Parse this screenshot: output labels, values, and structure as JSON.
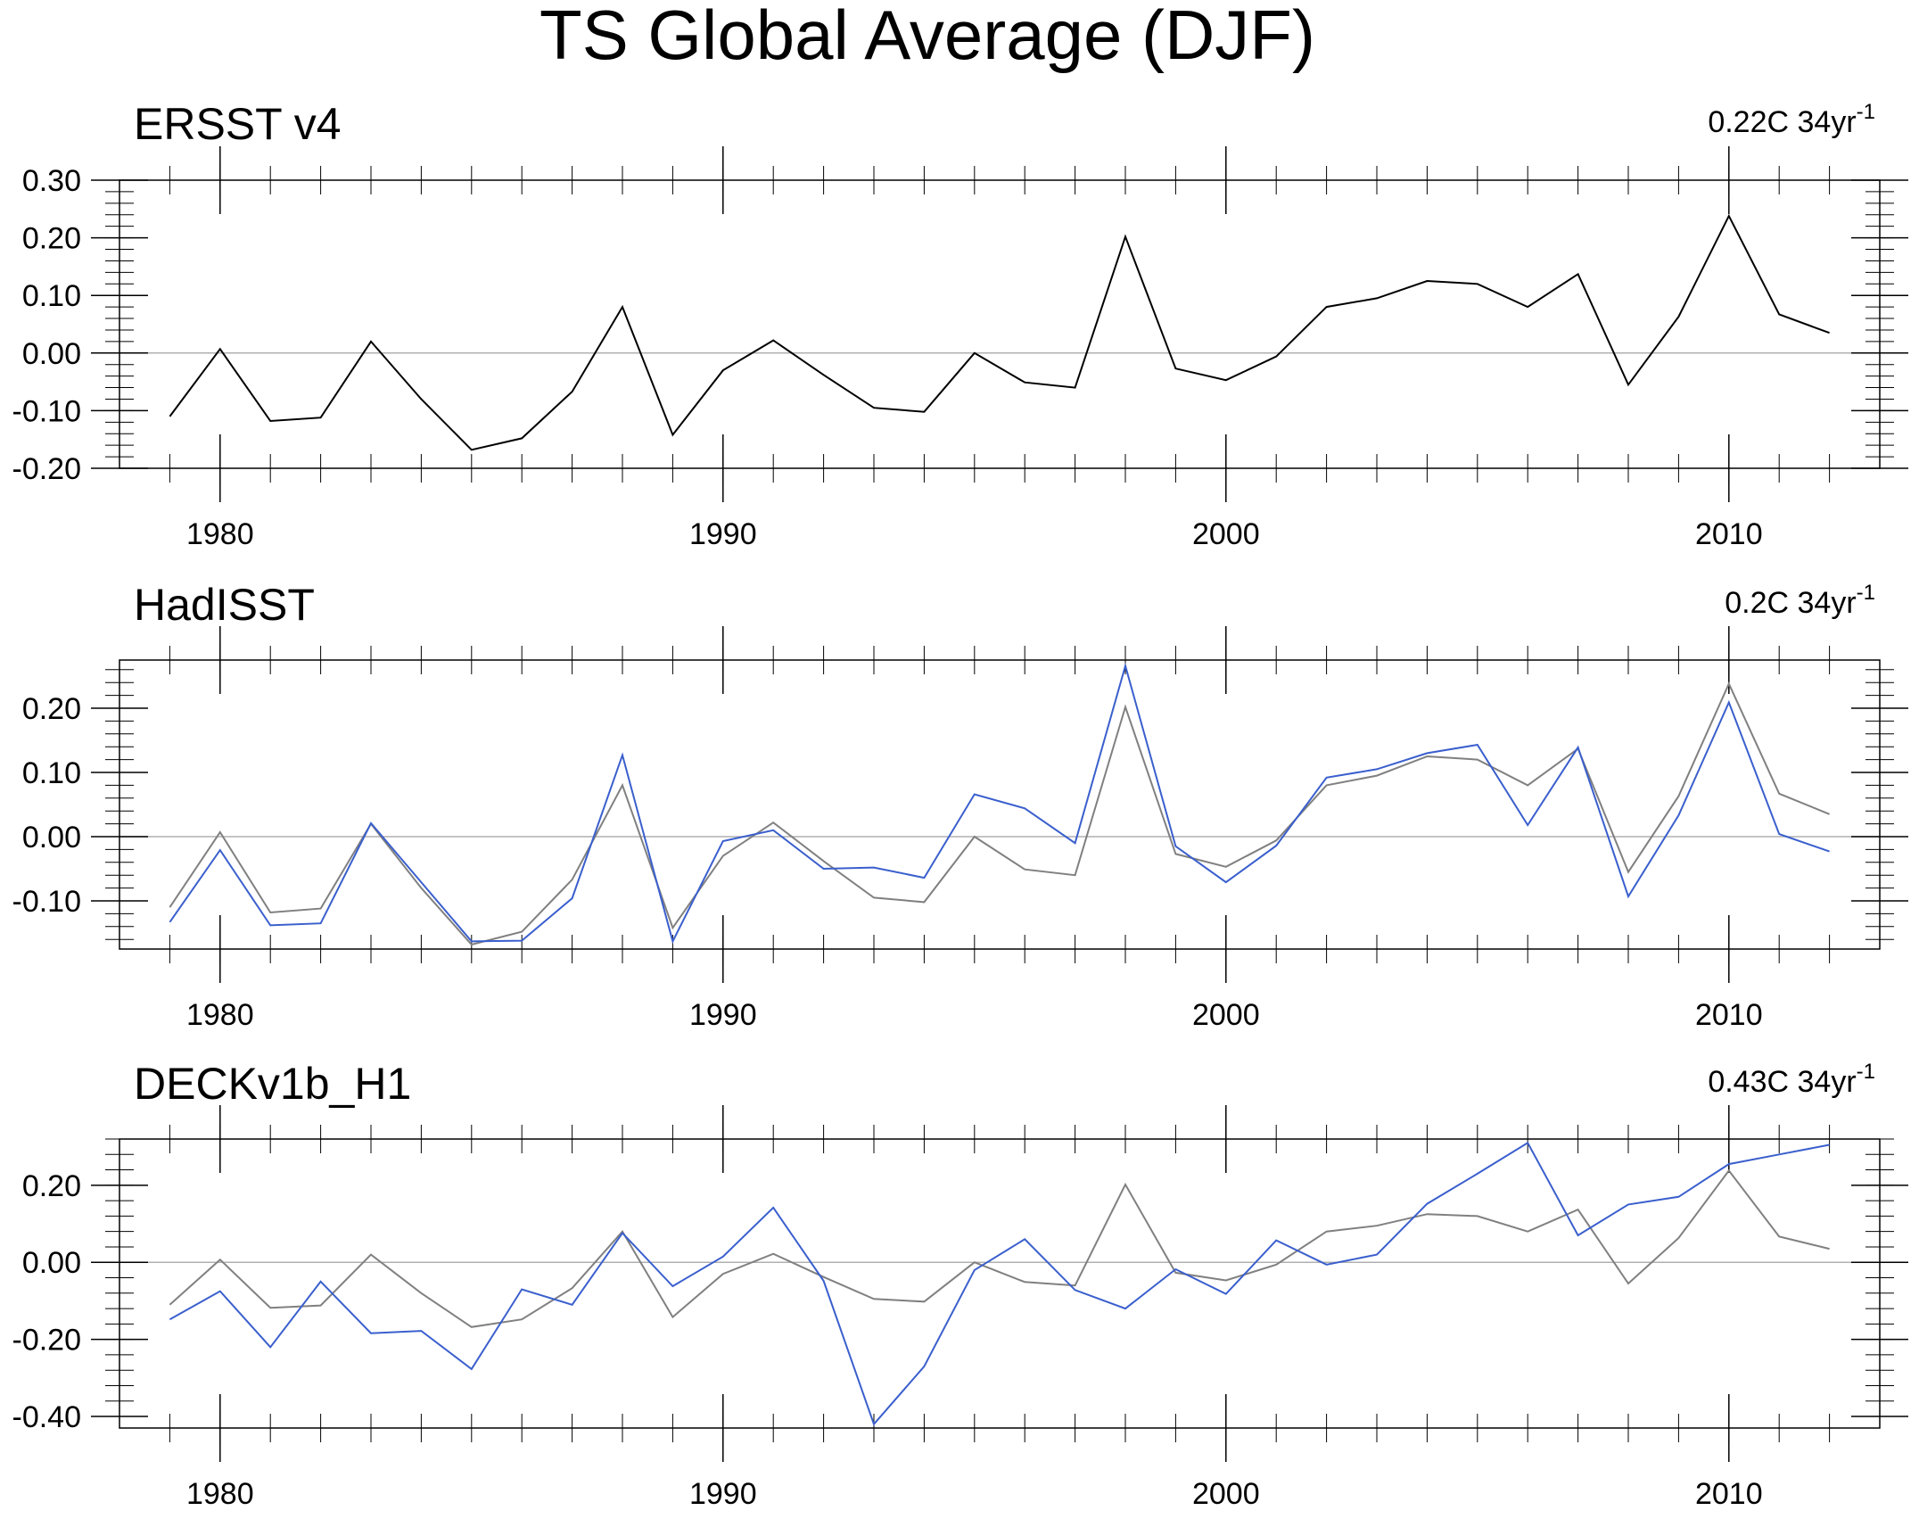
{
  "title": "TS Global Average (DJF)",
  "chart_data": [
    {
      "type": "line",
      "title": "ERSST v4",
      "trend": {
        "value": "0.22C 34yr",
        "sup": "-1"
      },
      "x": [
        1979,
        1980,
        1981,
        1982,
        1983,
        1984,
        1985,
        1986,
        1987,
        1988,
        1989,
        1990,
        1991,
        1992,
        1993,
        1994,
        1995,
        1996,
        1997,
        1998,
        1999,
        2000,
        2001,
        2002,
        2003,
        2004,
        2005,
        2006,
        2007,
        2008,
        2009,
        2010,
        2011,
        2012
      ],
      "xlim": [
        1978,
        2013
      ],
      "ylim": [
        -0.2,
        0.3
      ],
      "xticks": [
        1980,
        1990,
        2000,
        2010
      ],
      "xtick_labels": [
        "1980",
        "1990",
        "2000",
        "2010"
      ],
      "yticks": [
        -0.2,
        -0.1,
        0.0,
        0.1,
        0.2,
        0.3
      ],
      "ytick_labels": [
        "-0.20",
        "-0.10",
        "0.00",
        "0.10",
        "0.20",
        "0.30"
      ],
      "yminor_step": 0.02,
      "series": [
        {
          "name": "ERSST v4",
          "color": "#000000",
          "values": [
            -0.11,
            0.007,
            -0.118,
            -0.112,
            0.02,
            -0.08,
            -0.168,
            -0.148,
            -0.067,
            0.08,
            -0.142,
            -0.03,
            0.022,
            -0.038,
            -0.095,
            -0.102,
            0.0,
            -0.051,
            -0.06,
            0.202,
            -0.027,
            -0.047,
            -0.006,
            0.08,
            0.095,
            0.125,
            0.12,
            0.08,
            0.137,
            -0.055,
            0.063,
            0.238,
            0.067,
            0.035
          ]
        }
      ]
    },
    {
      "type": "line",
      "title": "HadISST",
      "trend": {
        "value": "0.2C 34yr",
        "sup": "-1"
      },
      "x": [
        1979,
        1980,
        1981,
        1982,
        1983,
        1984,
        1985,
        1986,
        1987,
        1988,
        1989,
        1990,
        1991,
        1992,
        1993,
        1994,
        1995,
        1996,
        1997,
        1998,
        1999,
        2000,
        2001,
        2002,
        2003,
        2004,
        2005,
        2006,
        2007,
        2008,
        2009,
        2010,
        2011,
        2012
      ],
      "xlim": [
        1978,
        2013
      ],
      "ylim": [
        -0.175,
        0.275
      ],
      "xticks": [
        1980,
        1990,
        2000,
        2010
      ],
      "xtick_labels": [
        "1980",
        "1990",
        "2000",
        "2010"
      ],
      "yticks": [
        -0.1,
        0.0,
        0.1,
        0.2
      ],
      "ytick_labels": [
        "-0.10",
        "0.00",
        "0.10",
        "0.20"
      ],
      "yminor_step": 0.02,
      "series": [
        {
          "name": "ERSST v4",
          "color": "#808080",
          "values": [
            -0.11,
            0.007,
            -0.118,
            -0.112,
            0.02,
            -0.08,
            -0.168,
            -0.148,
            -0.067,
            0.08,
            -0.142,
            -0.03,
            0.022,
            -0.038,
            -0.095,
            -0.102,
            0.0,
            -0.051,
            -0.06,
            0.202,
            -0.027,
            -0.047,
            -0.006,
            0.08,
            0.095,
            0.125,
            0.12,
            0.08,
            0.137,
            -0.055,
            0.063,
            0.238,
            0.067,
            0.035
          ]
        },
        {
          "name": "HadISST",
          "color": "#3a5fcd",
          "values": [
            -0.133,
            -0.021,
            -0.138,
            -0.135,
            0.021,
            -0.071,
            -0.163,
            -0.162,
            -0.096,
            0.127,
            -0.163,
            -0.007,
            0.01,
            -0.05,
            -0.048,
            -0.064,
            0.066,
            0.044,
            -0.01,
            0.266,
            -0.015,
            -0.071,
            -0.014,
            0.092,
            0.105,
            0.13,
            0.143,
            0.018,
            0.139,
            -0.093,
            0.033,
            0.209,
            0.004,
            -0.023
          ]
        }
      ]
    },
    {
      "type": "line",
      "title": "DECKv1b_H1",
      "trend": {
        "value": "0.43C 34yr",
        "sup": "-1"
      },
      "x": [
        1979,
        1980,
        1981,
        1982,
        1983,
        1984,
        1985,
        1986,
        1987,
        1988,
        1989,
        1990,
        1991,
        1992,
        1993,
        1994,
        1995,
        1996,
        1997,
        1998,
        1999,
        2000,
        2001,
        2002,
        2003,
        2004,
        2005,
        2006,
        2007,
        2008,
        2009,
        2010,
        2011,
        2012
      ],
      "xlim": [
        1978,
        2013
      ],
      "ylim": [
        -0.43,
        0.32
      ],
      "xticks": [
        1980,
        1990,
        2000,
        2010
      ],
      "xtick_labels": [
        "1980",
        "1990",
        "2000",
        "2010"
      ],
      "yticks": [
        -0.4,
        -0.2,
        0.0,
        0.2
      ],
      "ytick_labels": [
        "-0.40",
        "-0.20",
        "0.00",
        "0.20"
      ],
      "yminor_step": 0.04,
      "series": [
        {
          "name": "ERSST v4",
          "color": "#808080",
          "values": [
            -0.11,
            0.007,
            -0.118,
            -0.112,
            0.02,
            -0.08,
            -0.168,
            -0.148,
            -0.067,
            0.08,
            -0.142,
            -0.03,
            0.022,
            -0.038,
            -0.095,
            -0.102,
            0.0,
            -0.051,
            -0.06,
            0.202,
            -0.027,
            -0.047,
            -0.006,
            0.08,
            0.095,
            0.125,
            0.12,
            0.08,
            0.137,
            -0.055,
            0.063,
            0.238,
            0.067,
            0.035
          ]
        },
        {
          "name": "DECKv1b_H1",
          "color": "#3a5fcd",
          "values": [
            -0.148,
            -0.075,
            -0.22,
            -0.05,
            -0.184,
            -0.178,
            -0.277,
            -0.07,
            -0.11,
            0.076,
            -0.062,
            0.015,
            0.142,
            -0.048,
            -0.42,
            -0.27,
            -0.02,
            0.06,
            -0.072,
            -0.12,
            -0.018,
            -0.082,
            0.057,
            -0.006,
            0.02,
            0.152,
            0.23,
            0.31,
            0.07,
            0.15,
            0.17,
            0.255,
            0.28,
            0.305
          ]
        }
      ]
    }
  ]
}
